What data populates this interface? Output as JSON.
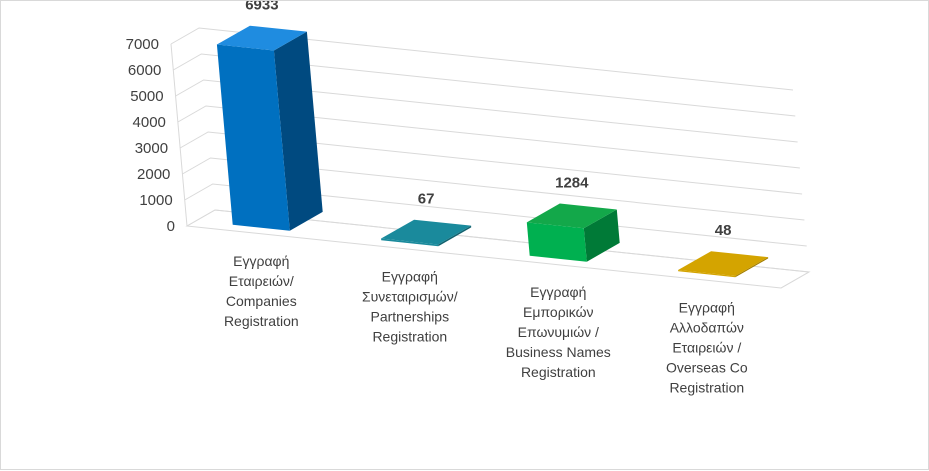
{
  "chart_data": {
    "type": "bar",
    "style": "3d-column",
    "categories": [
      [
        "Εγγραφή",
        "Εταιρειών/",
        "Companies",
        "Registration"
      ],
      [
        "Εγγραφή",
        "Συνεταιρισμών/",
        "Partnerships",
        "Registration"
      ],
      [
        "Εγγραφή",
        "Εμπορικών",
        "Επωνυμιών /",
        "Business Names",
        "Registration"
      ],
      [
        "Εγγραφή",
        "Αλλοδαπών",
        "Εταιρειών /",
        "Overseas Co",
        "Registration"
      ]
    ],
    "values": [
      6933,
      67,
      1284,
      48
    ],
    "data_labels": [
      "6933",
      "67",
      "1284",
      "48"
    ],
    "bar_colors": [
      {
        "front": "#0070c0",
        "side": "#004a80",
        "top": "#1f8ce0"
      },
      {
        "front": "#1a8a9c",
        "side": "#12626f",
        "top": "#1a8a9c"
      },
      {
        "front": "#00b050",
        "side": "#007a37",
        "top": "#13a84a"
      },
      {
        "front": "#d4a400",
        "side": "#a37e00",
        "top": "#d4a400"
      }
    ],
    "ylim": [
      0,
      7000
    ],
    "yticks": [
      "0",
      "1000",
      "2000",
      "3000",
      "4000",
      "5000",
      "6000",
      "7000"
    ],
    "grid": true,
    "legend": "none",
    "title": "",
    "xlabel": "",
    "ylabel": ""
  }
}
